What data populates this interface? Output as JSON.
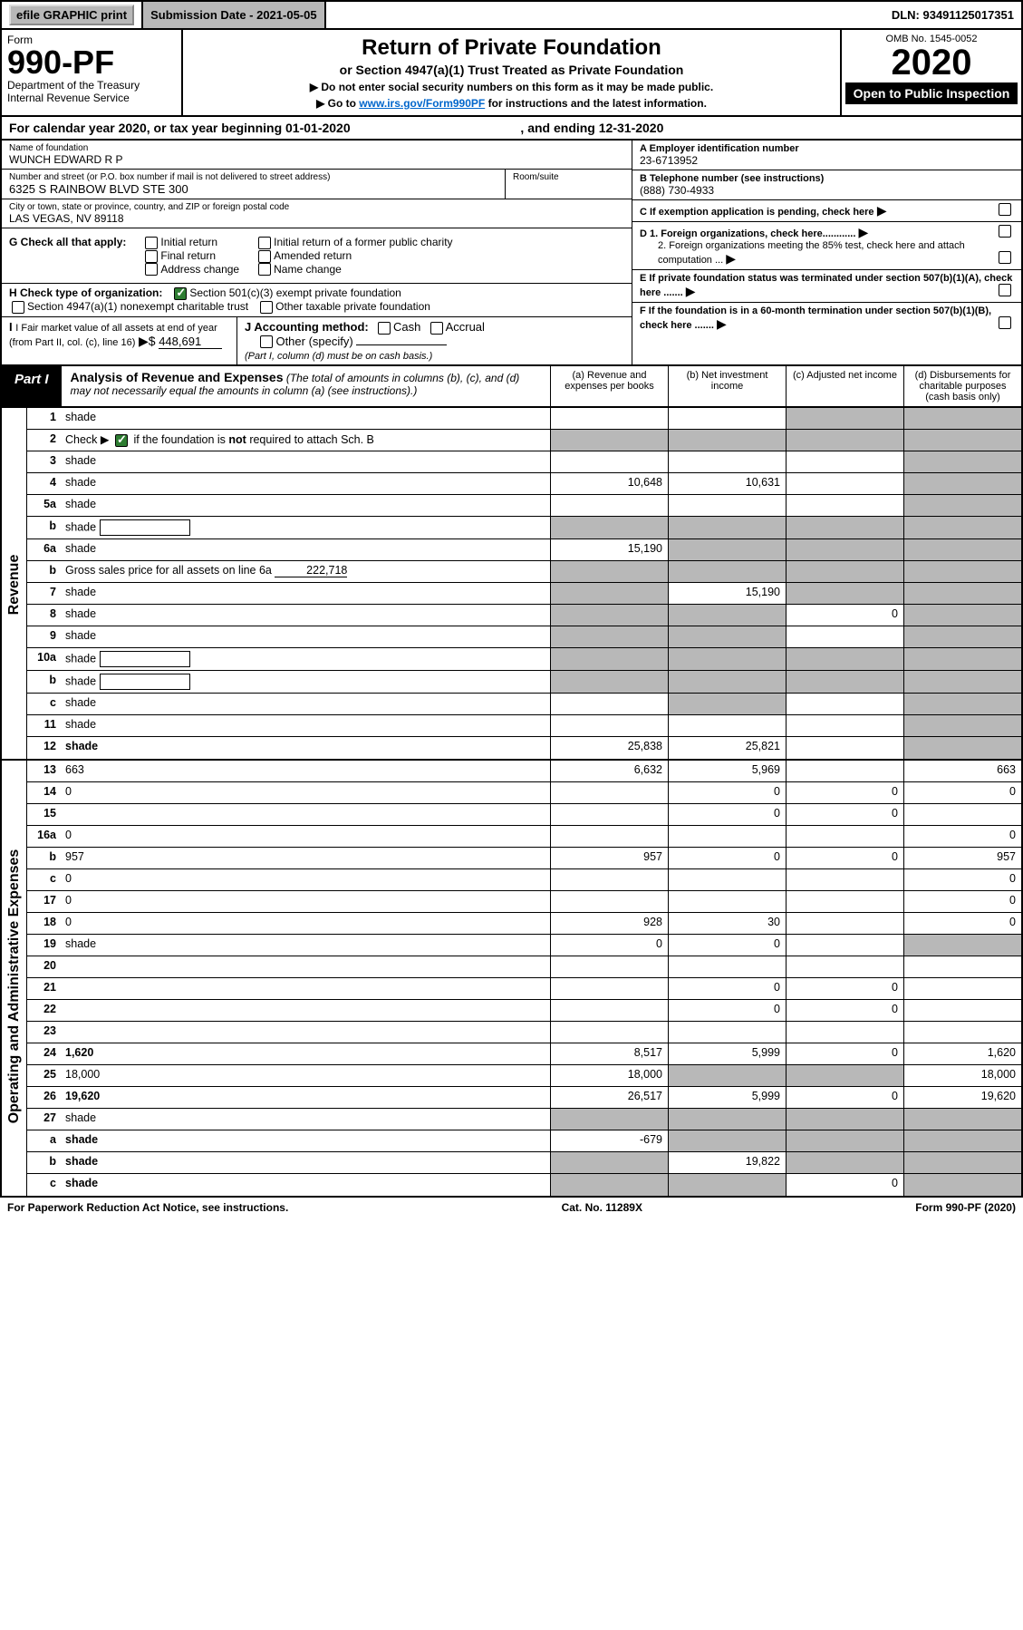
{
  "topbar": {
    "efile": "efile GRAPHIC print",
    "submission": "Submission Date - 2021-05-05",
    "dln": "DLN: 93491125017351"
  },
  "header": {
    "form_word": "Form",
    "form_no": "990-PF",
    "dept": "Department of the Treasury",
    "irs": "Internal Revenue Service",
    "title": "Return of Private Foundation",
    "subtitle": "or Section 4947(a)(1) Trust Treated as Private Foundation",
    "note1": "▶ Do not enter social security numbers on this form as it may be made public.",
    "note2_pre": "▶ Go to ",
    "note2_link": "www.irs.gov/Form990PF",
    "note2_post": " for instructions and the latest information.",
    "omb": "OMB No. 1545-0052",
    "year": "2020",
    "open": "Open to Public Inspection"
  },
  "cal_year": {
    "pre": "For calendar year 2020, or tax year beginning ",
    "begin": "01-01-2020",
    "mid": " , and ending ",
    "end": "12-31-2020"
  },
  "name_block": {
    "label": "Name of foundation",
    "value": "WUNCH EDWARD R P",
    "addr_label": "Number and street (or P.O. box number if mail is not delivered to street address)",
    "addr": "6325 S RAINBOW BLVD STE 300",
    "room_label": "Room/suite",
    "city_label": "City or town, state or province, country, and ZIP or foreign postal code",
    "city": "LAS VEGAS, NV  89118"
  },
  "right_block": {
    "a_label": "A Employer identification number",
    "a_val": "23-6713952",
    "b_label": "B Telephone number (see instructions)",
    "b_val": "(888) 730-4933",
    "c_label": "C If exemption application is pending, check here",
    "d1": "D 1. Foreign organizations, check here............",
    "d2": "2. Foreign organizations meeting the 85% test, check here and attach computation ...",
    "e": "E  If private foundation status was terminated under section 507(b)(1)(A), check here .......",
    "f": "F  If the foundation is in a 60-month termination under section 507(b)(1)(B), check here .......",
    "arrow": "▶"
  },
  "g_block": {
    "label": "G Check all that apply:",
    "opts": [
      "Initial return",
      "Final return",
      "Address change",
      "Initial return of a former public charity",
      "Amended return",
      "Name change"
    ]
  },
  "h_block": {
    "label": "H Check type of organization:",
    "opt1": "Section 501(c)(3) exempt private foundation",
    "opt2": "Section 4947(a)(1) nonexempt charitable trust",
    "opt3": "Other taxable private foundation"
  },
  "i_block": {
    "label": "I Fair market value of all assets at end of year (from Part II, col. (c), line 16)",
    "arrow": "▶$",
    "val": "448,691"
  },
  "j_block": {
    "label": "J Accounting method:",
    "cash": "Cash",
    "accrual": "Accrual",
    "other": "Other (specify)",
    "note": "(Part I, column (d) must be on cash basis.)"
  },
  "part1": {
    "badge": "Part I",
    "title": "Analysis of Revenue and Expenses",
    "note": " (The total of amounts in columns (b), (c), and (d) may not necessarily equal the amounts in column (a) (see instructions).)",
    "col_a": "(a)   Revenue and expenses per books",
    "col_b": "(b)   Net investment income",
    "col_c": "(c)   Adjusted net income",
    "col_d": "(d)   Disbursements for charitable purposes (cash basis only)"
  },
  "side_labels": {
    "revenue": "Revenue",
    "expenses": "Operating and Administrative Expenses"
  },
  "rows_revenue": [
    {
      "n": "1",
      "d": "shade",
      "a": "",
      "b": "",
      "c": "shade"
    },
    {
      "n": "2",
      "d_html": "Check ▶ [check] if the foundation is <b>not</b> required to attach Sch. B",
      "a": "shade",
      "b": "shade",
      "c": "shade",
      "d": "shade",
      "checked": true
    },
    {
      "n": "3",
      "d": "shade",
      "a": "",
      "b": "",
      "c": ""
    },
    {
      "n": "4",
      "d": "shade",
      "a": "10,648",
      "b": "10,631",
      "c": ""
    },
    {
      "n": "5a",
      "d": "shade",
      "a": "",
      "b": "",
      "c": ""
    },
    {
      "n": "b",
      "d": "shade",
      "inner": true,
      "a": "shade",
      "b": "shade",
      "c": "shade"
    },
    {
      "n": "6a",
      "d": "shade",
      "a": "15,190",
      "b": "shade",
      "c": "shade"
    },
    {
      "n": "b",
      "d_html": "Gross sales price for all assets on line 6a",
      "inner_val": "222,718",
      "a": "shade",
      "b": "shade",
      "c": "shade",
      "d": "shade"
    },
    {
      "n": "7",
      "d": "shade",
      "a": "shade",
      "b": "15,190",
      "c": "shade"
    },
    {
      "n": "8",
      "d": "shade",
      "a": "shade",
      "b": "shade",
      "c": "0"
    },
    {
      "n": "9",
      "d": "shade",
      "a": "shade",
      "b": "shade",
      "c": ""
    },
    {
      "n": "10a",
      "d": "shade",
      "inner": true,
      "a": "shade",
      "b": "shade",
      "c": "shade"
    },
    {
      "n": "b",
      "d": "shade",
      "inner": true,
      "a": "shade",
      "b": "shade",
      "c": "shade"
    },
    {
      "n": "c",
      "d": "shade",
      "a": "",
      "b": "shade",
      "c": ""
    },
    {
      "n": "11",
      "d": "shade",
      "a": "",
      "b": "",
      "c": ""
    },
    {
      "n": "12",
      "d": "shade",
      "bold": true,
      "a": "25,838",
      "b": "25,821",
      "c": ""
    }
  ],
  "rows_expenses": [
    {
      "n": "13",
      "d": "663",
      "a": "6,632",
      "b": "5,969",
      "c": ""
    },
    {
      "n": "14",
      "d": "0",
      "a": "",
      "b": "0",
      "c": "0"
    },
    {
      "n": "15",
      "d": "",
      "a": "",
      "b": "0",
      "c": "0"
    },
    {
      "n": "16a",
      "d": "0",
      "a": "",
      "b": "",
      "c": ""
    },
    {
      "n": "b",
      "d": "957",
      "a": "957",
      "b": "0",
      "c": "0"
    },
    {
      "n": "c",
      "d": "0",
      "a": "",
      "b": "",
      "c": ""
    },
    {
      "n": "17",
      "d": "0",
      "a": "",
      "b": "",
      "c": ""
    },
    {
      "n": "18",
      "d": "0",
      "a": "928",
      "b": "30",
      "c": ""
    },
    {
      "n": "19",
      "d": "shade",
      "a": "0",
      "b": "0",
      "c": ""
    },
    {
      "n": "20",
      "d": "",
      "a": "",
      "b": "",
      "c": ""
    },
    {
      "n": "21",
      "d": "",
      "a": "",
      "b": "0",
      "c": "0"
    },
    {
      "n": "22",
      "d": "",
      "a": "",
      "b": "0",
      "c": "0"
    },
    {
      "n": "23",
      "d": "",
      "a": "",
      "b": "",
      "c": ""
    },
    {
      "n": "24",
      "d": "1,620",
      "bold": true,
      "a": "8,517",
      "b": "5,999",
      "c": "0"
    },
    {
      "n": "25",
      "d": "18,000",
      "a": "18,000",
      "b": "shade",
      "c": "shade"
    },
    {
      "n": "26",
      "d": "19,620",
      "bold": true,
      "a": "26,517",
      "b": "5,999",
      "c": "0"
    },
    {
      "n": "27",
      "d": "shade",
      "a": "shade",
      "b": "shade",
      "c": "shade"
    },
    {
      "n": "a",
      "d": "shade",
      "bold": true,
      "a": "-679",
      "b": "shade",
      "c": "shade"
    },
    {
      "n": "b",
      "d": "shade",
      "bold": true,
      "a": "shade",
      "b": "19,822",
      "c": "shade"
    },
    {
      "n": "c",
      "d": "shade",
      "bold": true,
      "a": "shade",
      "b": "shade",
      "c": "0"
    }
  ],
  "footer": {
    "left": "For Paperwork Reduction Act Notice, see instructions.",
    "mid": "Cat. No. 11289X",
    "right": "Form 990-PF (2020)"
  },
  "colors": {
    "shade": "#b8b8b8",
    "link": "#0066cc",
    "check_green": "#2e7d32"
  }
}
